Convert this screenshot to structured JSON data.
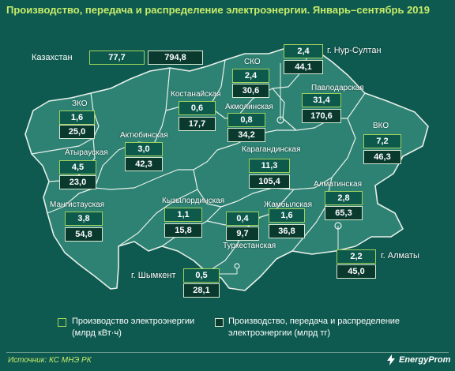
{
  "title": "Производство, передача и распределение электроэнергии. Январь–сентябрь 2019",
  "kazakhstan": {
    "label": "Казахстан",
    "production": "77,7",
    "finance": "794,8"
  },
  "regions": {
    "nursultan": {
      "label": "г. Нур-Султан",
      "production": "2,4",
      "finance": "44,1"
    },
    "sko": {
      "label": "СКО",
      "production": "2,4",
      "finance": "30,6"
    },
    "kostanay": {
      "label": "Костанайская",
      "production": "0,6",
      "finance": "17,7"
    },
    "akmola": {
      "label": "Акмолинская",
      "production": "0,8",
      "finance": "34,2"
    },
    "pavlodar": {
      "label": "Павлодарская",
      "production": "31,4",
      "finance": "170,6"
    },
    "zko": {
      "label": "ЗКО",
      "production": "1,6",
      "finance": "25,0"
    },
    "vko": {
      "label": "ВКО",
      "production": "7,2",
      "finance": "46,3"
    },
    "aktobe": {
      "label": "Актюбинская",
      "production": "3,0",
      "finance": "42,3"
    },
    "atyrau": {
      "label": "Атырауская",
      "production": "4,5",
      "finance": "23,0"
    },
    "karaganda": {
      "label": "Карагандинская",
      "production": "11,3",
      "finance": "105,4"
    },
    "almaty_obl": {
      "label": "Алматинская",
      "production": "2,8",
      "finance": "65,3"
    },
    "mangystau": {
      "label": "Мангистауская",
      "production": "3,8",
      "finance": "54,8"
    },
    "kyzylorda": {
      "label": "Кызылординская",
      "production": "1,1",
      "finance": "15,8"
    },
    "zhambyl": {
      "label": "Жамбылская",
      "production": "1,6",
      "finance": "36,8"
    },
    "turkestan": {
      "label": "Туркестанская",
      "production": "0,4",
      "finance": "9,7"
    },
    "shymkent": {
      "label": "г. Шымкент",
      "production": "0,5",
      "finance": "28,1"
    },
    "almaty_city": {
      "label": "г. Алматы",
      "production": "2,2",
      "finance": "45,0"
    }
  },
  "legend": {
    "production": "Производство электроэнергии\n(млрд кВт·ч)",
    "finance": "Производство, передача и распределение\nэлектроэнергии (млрд тг)"
  },
  "source": "Источник: КС МНЭ РК",
  "logo": "EnergyProm",
  "colors": {
    "background": "#0f5a50",
    "land": "#2d8273",
    "border": "#e8f0ea",
    "accent": "#c7ec6a",
    "production_border": "#9fd25a",
    "finance_fill": "#0a3a2e"
  }
}
